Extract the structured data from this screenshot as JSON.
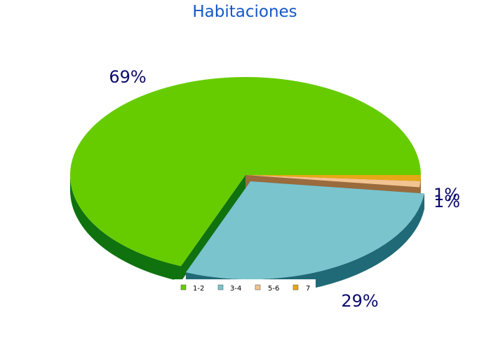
{
  "chart_data": {
    "type": "pie",
    "title": "Habitaciones",
    "categories": [
      "1-2",
      "3-4",
      "5-6",
      "7"
    ],
    "values": [
      69,
      29,
      1,
      1
    ],
    "labels": [
      "69%",
      "29%",
      "1%",
      "1%"
    ],
    "colors": [
      "#66cc00",
      "#7ac4ce",
      "#f2c491",
      "#e6a817"
    ],
    "side_colors": [
      "#0f720f",
      "#1f6a76",
      "#9a6b3c",
      "#9a6b3c"
    ],
    "legend_position": "bottom",
    "three_d": true
  }
}
